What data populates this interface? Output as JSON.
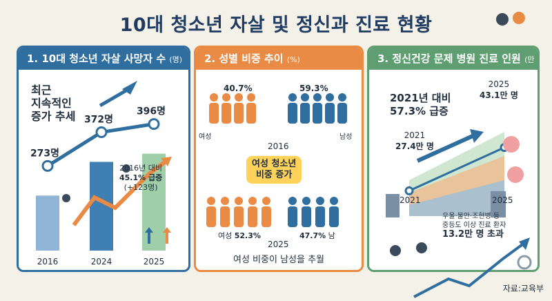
{
  "title": "10대 청소년 자살 및 정신과 진료 현황",
  "source": "자료:교육부",
  "panels": {
    "p1": {
      "heading": "1. 10대 청소년 자살 사망자 수",
      "unit": "(명)",
      "headline": [
        "최근",
        "지속적인",
        "증가 추세"
      ],
      "value_labels": [
        "273명",
        "372명",
        "396명"
      ],
      "note": [
        "2016년 대비",
        "45.1% 급증",
        "(+123명)"
      ]
    },
    "p2": {
      "heading": "2. 성별 비중 추이",
      "unit": "(%)",
      "callout": [
        "여성 청소년",
        "비중 증가"
      ],
      "caption": "여성 비중이 남성을 추월",
      "label_female": "여성",
      "label_male": "남성",
      "label_female_short": "여성",
      "label_male_short": "남",
      "top_female": "40.7%",
      "top_male": "59.3%",
      "bottom_female": "52.3%",
      "bottom_male": "47.7%"
    },
    "p3": {
      "heading": "3. 정신건강 문제 병원 진료 인원",
      "unit": "(만 명)",
      "headline": [
        "2021년 대비",
        "57.3% 급증"
      ],
      "start_year": "2021",
      "start_value": "27.4만 명",
      "end_year": "2025",
      "end_value": "43.1만 명",
      "note": [
        "우울·불안·조현병 등",
        "중등도 이상 진료 환자"
      ],
      "note_emph": "13.2만 명 초과"
    }
  },
  "colors": {
    "blue": "#2f6e9e",
    "orange": "#e98b45",
    "green": "#5e9e70",
    "navy": "#1f3b62"
  },
  "chart_data": [
    {
      "type": "bar",
      "title": "1. 10대 청소년 자살 사망자 수",
      "unit": "명",
      "categories": [
        "2016",
        "2024",
        "2025"
      ],
      "values": [
        273,
        372,
        396
      ],
      "ylim": [
        0,
        450
      ]
    },
    {
      "type": "bar",
      "title": "2. 성별 비중 추이",
      "unit": "%",
      "categories": [
        "2016",
        "2025"
      ],
      "series": [
        {
          "name": "여성",
          "values": [
            40.7,
            52.3
          ]
        },
        {
          "name": "남성",
          "values": [
            59.3,
            47.7
          ]
        }
      ]
    },
    {
      "type": "line",
      "title": "3. 정신건강 문제 병원 진료 인원",
      "unit": "만 명",
      "x": [
        "2021",
        "2025"
      ],
      "values": [
        27.4,
        43.1
      ]
    }
  ]
}
